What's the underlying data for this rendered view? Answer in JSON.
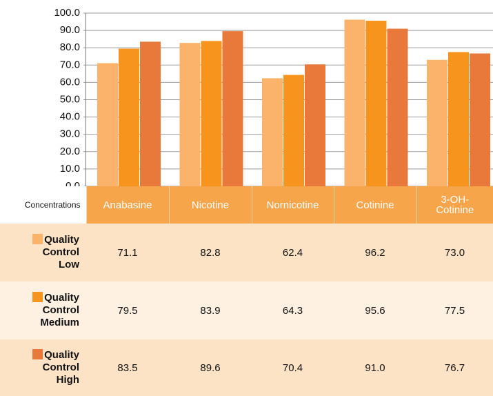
{
  "chart_data": {
    "type": "bar",
    "categories": [
      "Anabasine",
      "Nicotine",
      "Nornicotine",
      "Cotinine",
      "3-OH-Cotinine"
    ],
    "table_header": "Concentrations",
    "series": [
      {
        "name": "Quality Control Low",
        "color": "#fbb36b",
        "values": [
          71.1,
          82.8,
          62.4,
          96.2,
          73.0
        ],
        "value_labels": [
          "71.1",
          "82.8",
          "62.4",
          "96.2",
          "73.0"
        ]
      },
      {
        "name": "Quality Control Medium",
        "color": "#f7941d",
        "values": [
          79.5,
          83.9,
          64.3,
          95.6,
          77.5
        ],
        "value_labels": [
          "79.5",
          "83.9",
          "64.3",
          "95.6",
          "77.5"
        ]
      },
      {
        "name": "Quality Control High",
        "color": "#e8793a",
        "values": [
          83.5,
          89.6,
          70.4,
          91.0,
          76.7
        ],
        "value_labels": [
          "83.5",
          "89.6",
          "70.4",
          "91.0",
          "76.7"
        ]
      }
    ],
    "ylim": [
      0,
      100
    ],
    "yticks": [
      {
        "value": 0,
        "label": "0.0"
      },
      {
        "value": 10,
        "label": "10.0"
      },
      {
        "value": 20,
        "label": "20.0"
      },
      {
        "value": 30,
        "label": "30.0"
      },
      {
        "value": 40,
        "label": "40.0"
      },
      {
        "value": 50,
        "label": "50.0"
      },
      {
        "value": 60,
        "label": "60.0"
      },
      {
        "value": 70,
        "label": "70.0"
      },
      {
        "value": 80,
        "label": "80.0"
      },
      {
        "value": 90,
        "label": "90.0"
      },
      {
        "value": 100,
        "label": "100.0"
      }
    ],
    "grid": true
  }
}
